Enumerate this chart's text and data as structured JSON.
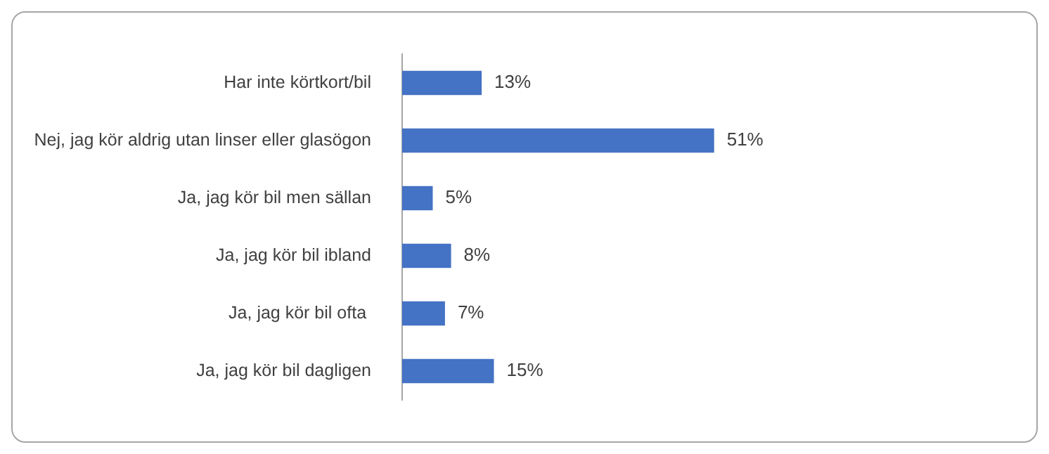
{
  "chart_data": {
    "type": "bar",
    "orientation": "horizontal",
    "categories": [
      "Har inte körtkort/bil",
      "Nej, jag kör aldrig utan linser eller glasögon",
      "Ja, jag kör bil men sällan",
      "Ja, jag kör bil ibland",
      "Ja, jag kör bil ofta ",
      "Ja, jag kör bil dagligen"
    ],
    "values": [
      13,
      51,
      5,
      8,
      7,
      15
    ],
    "value_labels": [
      "13%",
      "51%",
      "5%",
      "8%",
      "7%",
      "15%"
    ],
    "color": "#4472c4",
    "grid": false,
    "legend": false
  }
}
